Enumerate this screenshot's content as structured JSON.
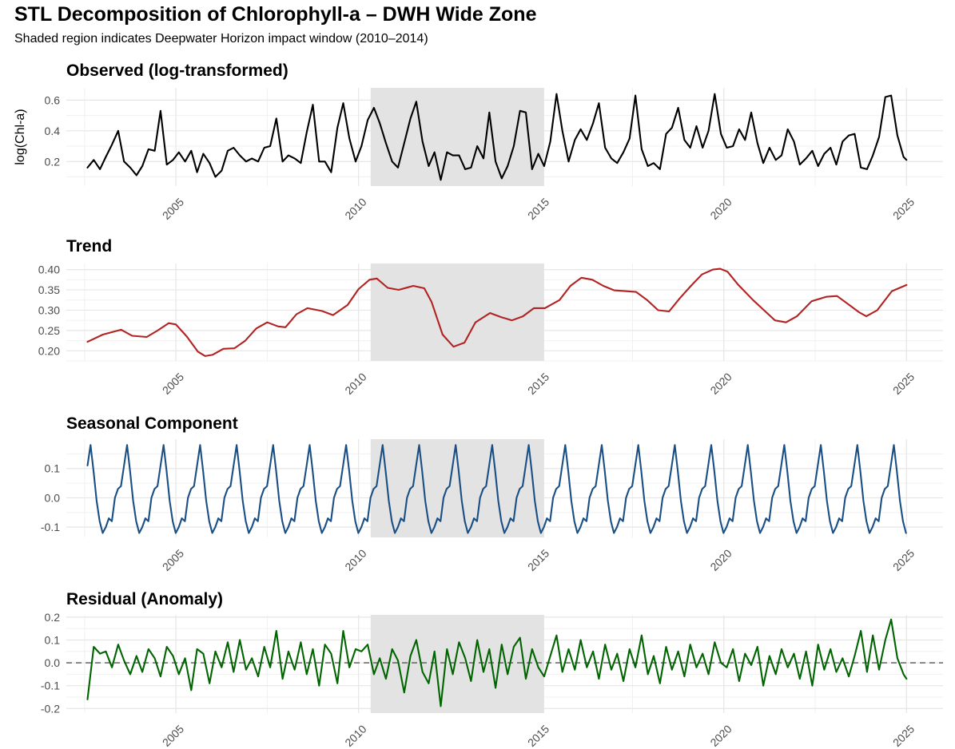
{
  "title": "STL Decomposition of Chlorophyll-a – DWH Wide Zone",
  "subtitle": "Shaded region indicates Deepwater Horizon impact window (2010–2014)",
  "chart_data": [
    {
      "type": "line",
      "panel_title": "Observed (log-transformed)",
      "ylabel": "log(Chl-a)",
      "line_color": "#000000",
      "x_ticks": [
        2005,
        2010,
        2015,
        2020,
        2025
      ],
      "y_ticks": [
        0.2,
        0.4,
        0.6
      ],
      "y_tick_labels": [
        "0.2",
        "0.4",
        "0.6"
      ],
      "ylim": [
        0.04,
        0.68
      ],
      "shaded_interval": [
        2010.33,
        2015.08
      ],
      "series": [
        {
          "x": [
            2002.58,
            2002.75,
            2002.92,
            2003.08,
            2003.25,
            2003.42,
            2003.58,
            2003.75,
            2003.92,
            2004.08,
            2004.25,
            2004.42,
            2004.58,
            2004.75,
            2004.92,
            2005.08,
            2005.25,
            2005.42,
            2005.58,
            2005.75,
            2005.92,
            2006.08,
            2006.25,
            2006.42,
            2006.58,
            2006.75,
            2006.92,
            2007.08,
            2007.25,
            2007.42,
            2007.58,
            2007.75,
            2007.92,
            2008.08,
            2008.25,
            2008.42,
            2008.58,
            2008.75,
            2008.92,
            2009.08,
            2009.25,
            2009.42,
            2009.58,
            2009.75,
            2009.92,
            2010.08,
            2010.25,
            2010.42,
            2010.58,
            2010.75,
            2010.92,
            2011.08,
            2011.25,
            2011.42,
            2011.58,
            2011.75,
            2011.92,
            2012.08,
            2012.25,
            2012.42,
            2012.58,
            2012.75,
            2012.92,
            2013.08,
            2013.25,
            2013.42,
            2013.58,
            2013.75,
            2013.92,
            2014.08,
            2014.25,
            2014.42,
            2014.58,
            2014.75,
            2014.92,
            2015.08,
            2015.25,
            2015.42,
            2015.58,
            2015.75,
            2015.92,
            2016.08,
            2016.25,
            2016.42,
            2016.58,
            2016.75,
            2016.92,
            2017.08,
            2017.25,
            2017.42,
            2017.58,
            2017.75,
            2017.92,
            2018.08,
            2018.25,
            2018.42,
            2018.58,
            2018.75,
            2018.92,
            2019.08,
            2019.25,
            2019.42,
            2019.58,
            2019.75,
            2019.92,
            2020.08,
            2020.25,
            2020.42,
            2020.58,
            2020.75,
            2020.92,
            2021.08,
            2021.25,
            2021.42,
            2021.58,
            2021.75,
            2021.92,
            2022.08,
            2022.25,
            2022.42,
            2022.58,
            2022.75,
            2022.92,
            2023.08,
            2023.25,
            2023.42,
            2023.58,
            2023.75,
            2023.92,
            2024.08,
            2024.25,
            2024.42,
            2024.58,
            2024.75,
            2024.92,
            2025.0
          ],
          "y": [
            0.16,
            0.21,
            0.15,
            0.23,
            0.31,
            0.4,
            0.2,
            0.16,
            0.11,
            0.17,
            0.28,
            0.27,
            0.53,
            0.18,
            0.21,
            0.26,
            0.2,
            0.27,
            0.13,
            0.25,
            0.19,
            0.1,
            0.14,
            0.27,
            0.29,
            0.24,
            0.2,
            0.22,
            0.2,
            0.29,
            0.3,
            0.48,
            0.2,
            0.24,
            0.22,
            0.19,
            0.39,
            0.57,
            0.2,
            0.2,
            0.13,
            0.42,
            0.58,
            0.35,
            0.2,
            0.3,
            0.47,
            0.55,
            0.45,
            0.32,
            0.2,
            0.16,
            0.32,
            0.48,
            0.59,
            0.33,
            0.17,
            0.26,
            0.08,
            0.26,
            0.24,
            0.24,
            0.15,
            0.16,
            0.3,
            0.22,
            0.52,
            0.2,
            0.09,
            0.17,
            0.3,
            0.53,
            0.52,
            0.15,
            0.25,
            0.17,
            0.33,
            0.64,
            0.4,
            0.2,
            0.34,
            0.41,
            0.34,
            0.45,
            0.58,
            0.29,
            0.22,
            0.19,
            0.26,
            0.35,
            0.63,
            0.28,
            0.17,
            0.19,
            0.15,
            0.38,
            0.42,
            0.55,
            0.34,
            0.29,
            0.43,
            0.29,
            0.4,
            0.64,
            0.38,
            0.29,
            0.3,
            0.41,
            0.34,
            0.52,
            0.32,
            0.19,
            0.29,
            0.21,
            0.24,
            0.41,
            0.33,
            0.18,
            0.22,
            0.27,
            0.17,
            0.25,
            0.29,
            0.18,
            0.33,
            0.37,
            0.38,
            0.16,
            0.15,
            0.24,
            0.36,
            0.62,
            0.63,
            0.37,
            0.23,
            0.21
          ]
        }
      ]
    },
    {
      "type": "line",
      "panel_title": "Trend",
      "line_color": "#b22222",
      "x_ticks": [
        2005,
        2010,
        2015,
        2020,
        2025
      ],
      "y_ticks": [
        0.2,
        0.25,
        0.3,
        0.35,
        0.4
      ],
      "y_tick_labels": [
        "0.20",
        "0.25",
        "0.30",
        "0.35",
        "0.40"
      ],
      "ylim": [
        0.175,
        0.415
      ],
      "shaded_interval": [
        2010.33,
        2015.08
      ],
      "series": [
        {
          "x": [
            2002.58,
            2003.0,
            2003.5,
            2003.8,
            2004.2,
            2004.5,
            2004.8,
            2005.0,
            2005.3,
            2005.6,
            2005.8,
            2006.0,
            2006.3,
            2006.6,
            2006.9,
            2007.2,
            2007.5,
            2007.8,
            2008.0,
            2008.3,
            2008.6,
            2009.0,
            2009.3,
            2009.7,
            2010.0,
            2010.3,
            2010.5,
            2010.8,
            2011.1,
            2011.5,
            2011.8,
            2012.0,
            2012.3,
            2012.6,
            2012.9,
            2013.2,
            2013.6,
            2013.9,
            2014.2,
            2014.5,
            2014.8,
            2015.1,
            2015.5,
            2015.8,
            2016.1,
            2016.4,
            2016.7,
            2017.0,
            2017.3,
            2017.6,
            2017.9,
            2018.2,
            2018.5,
            2018.8,
            2019.1,
            2019.4,
            2019.7,
            2019.9,
            2020.1,
            2020.4,
            2020.8,
            2021.1,
            2021.4,
            2021.7,
            2022.0,
            2022.4,
            2022.8,
            2023.1,
            2023.4,
            2023.7,
            2023.9,
            2024.2,
            2024.6,
            2025.0
          ],
          "y": [
            0.222,
            0.24,
            0.252,
            0.237,
            0.234,
            0.25,
            0.268,
            0.265,
            0.235,
            0.198,
            0.187,
            0.19,
            0.205,
            0.206,
            0.225,
            0.255,
            0.27,
            0.26,
            0.258,
            0.29,
            0.305,
            0.298,
            0.288,
            0.313,
            0.352,
            0.375,
            0.378,
            0.355,
            0.35,
            0.36,
            0.354,
            0.32,
            0.24,
            0.21,
            0.22,
            0.27,
            0.293,
            0.283,
            0.275,
            0.285,
            0.305,
            0.305,
            0.325,
            0.36,
            0.38,
            0.375,
            0.36,
            0.349,
            0.347,
            0.345,
            0.325,
            0.3,
            0.297,
            0.33,
            0.36,
            0.388,
            0.4,
            0.402,
            0.395,
            0.362,
            0.325,
            0.3,
            0.275,
            0.27,
            0.285,
            0.322,
            0.333,
            0.335,
            0.315,
            0.295,
            0.285,
            0.3,
            0.347,
            0.362
          ]
        }
      ]
    },
    {
      "type": "line",
      "panel_title": "Seasonal Component",
      "line_color": "#1a4f85",
      "x_ticks": [
        2005,
        2010,
        2015,
        2020,
        2025
      ],
      "y_ticks": [
        -0.1,
        0.0,
        0.1
      ],
      "y_tick_labels": [
        "-0.1",
        "0.0",
        "0.1"
      ],
      "ylim": [
        -0.135,
        0.2
      ],
      "shaded_interval": [
        2010.33,
        2015.08
      ],
      "seasonal_pattern": {
        "start_x": 2002.58,
        "step": 0.0833,
        "count": 270,
        "cycle": [
          0.03,
          0.04,
          0.11,
          0.18,
          0.09,
          -0.01,
          -0.08,
          -0.12,
          -0.1,
          -0.07,
          -0.08,
          0.0
        ],
        "start_index": 2
      }
    },
    {
      "type": "line",
      "panel_title": "Residual (Anomaly)",
      "line_color": "#006400",
      "reference_line": 0.0,
      "x_ticks": [
        2005,
        2010,
        2015,
        2020,
        2025
      ],
      "y_ticks": [
        -0.2,
        -0.1,
        0.0,
        0.1,
        0.2
      ],
      "y_tick_labels": [
        "-0.2",
        "-0.1",
        "0.0",
        "0.1",
        "0.2"
      ],
      "ylim": [
        -0.22,
        0.21
      ],
      "shaded_interval": [
        2010.33,
        2015.08
      ],
      "series": [
        {
          "x": [
            2002.58,
            2002.75,
            2002.92,
            2003.08,
            2003.25,
            2003.42,
            2003.58,
            2003.75,
            2003.92,
            2004.08,
            2004.25,
            2004.42,
            2004.58,
            2004.75,
            2004.92,
            2005.08,
            2005.25,
            2005.42,
            2005.58,
            2005.75,
            2005.92,
            2006.08,
            2006.25,
            2006.42,
            2006.58,
            2006.75,
            2006.92,
            2007.08,
            2007.25,
            2007.42,
            2007.58,
            2007.75,
            2007.92,
            2008.08,
            2008.25,
            2008.42,
            2008.58,
            2008.75,
            2008.92,
            2009.08,
            2009.25,
            2009.42,
            2009.58,
            2009.75,
            2009.92,
            2010.08,
            2010.25,
            2010.42,
            2010.58,
            2010.75,
            2010.92,
            2011.08,
            2011.25,
            2011.42,
            2011.58,
            2011.75,
            2011.92,
            2012.08,
            2012.25,
            2012.42,
            2012.58,
            2012.75,
            2012.92,
            2013.08,
            2013.25,
            2013.42,
            2013.58,
            2013.75,
            2013.92,
            2014.08,
            2014.25,
            2014.42,
            2014.58,
            2014.75,
            2014.92,
            2015.08,
            2015.25,
            2015.42,
            2015.58,
            2015.75,
            2015.92,
            2016.08,
            2016.25,
            2016.42,
            2016.58,
            2016.75,
            2016.92,
            2017.08,
            2017.25,
            2017.42,
            2017.58,
            2017.75,
            2017.92,
            2018.08,
            2018.25,
            2018.42,
            2018.58,
            2018.75,
            2018.92,
            2019.08,
            2019.25,
            2019.42,
            2019.58,
            2019.75,
            2019.92,
            2020.08,
            2020.25,
            2020.42,
            2020.58,
            2020.75,
            2020.92,
            2021.08,
            2021.25,
            2021.42,
            2021.58,
            2021.75,
            2021.92,
            2022.08,
            2022.25,
            2022.42,
            2022.58,
            2022.75,
            2022.92,
            2023.08,
            2023.25,
            2023.42,
            2023.58,
            2023.75,
            2023.92,
            2024.08,
            2024.25,
            2024.42,
            2024.58,
            2024.75,
            2024.92,
            2025.0
          ],
          "y": [
            -0.16,
            0.07,
            0.04,
            0.05,
            -0.02,
            0.08,
            0.01,
            -0.05,
            0.03,
            -0.04,
            0.06,
            0.02,
            -0.06,
            0.07,
            0.03,
            -0.05,
            0.02,
            -0.12,
            0.06,
            0.04,
            -0.09,
            0.05,
            -0.02,
            0.09,
            -0.04,
            0.1,
            -0.03,
            0.02,
            -0.06,
            0.07,
            -0.02,
            0.14,
            -0.07,
            0.05,
            -0.03,
            0.09,
            -0.05,
            0.06,
            -0.1,
            0.08,
            0.04,
            -0.09,
            0.14,
            -0.02,
            0.06,
            0.05,
            0.08,
            -0.05,
            0.02,
            -0.07,
            0.06,
            0.01,
            -0.13,
            0.03,
            0.1,
            -0.04,
            -0.09,
            0.05,
            -0.19,
            0.06,
            -0.05,
            0.09,
            0.02,
            -0.08,
            0.1,
            -0.04,
            0.06,
            -0.11,
            0.08,
            -0.05,
            0.07,
            0.11,
            -0.07,
            0.06,
            -0.02,
            -0.06,
            0.03,
            0.12,
            -0.04,
            0.06,
            -0.03,
            0.1,
            -0.02,
            0.05,
            -0.07,
            0.08,
            -0.03,
            0.04,
            -0.08,
            0.06,
            -0.02,
            0.12,
            -0.05,
            0.03,
            -0.09,
            0.07,
            -0.03,
            0.05,
            -0.06,
            0.08,
            -0.02,
            0.04,
            -0.05,
            0.09,
            0.0,
            -0.02,
            0.06,
            -0.08,
            0.04,
            -0.01,
            0.07,
            -0.1,
            0.03,
            -0.05,
            0.06,
            -0.02,
            0.04,
            -0.07,
            0.05,
            -0.1,
            0.08,
            -0.03,
            0.06,
            -0.04,
            0.02,
            -0.06,
            0.03,
            0.14,
            -0.04,
            0.12,
            -0.03,
            0.1,
            0.19,
            0.02,
            -0.05,
            -0.07
          ]
        }
      ]
    }
  ]
}
